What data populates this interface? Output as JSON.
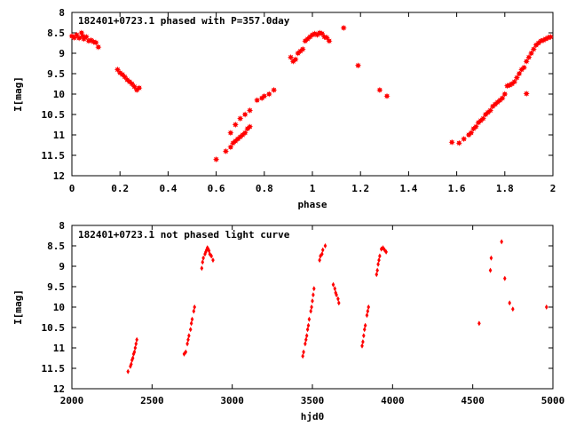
{
  "chart_data": [
    {
      "type": "scatter",
      "title": "182401+0723.1 phased with P=357.0day",
      "xlabel": "phase",
      "ylabel": "I[mag]",
      "xlim": [
        0,
        2
      ],
      "ylim": [
        8,
        12
      ],
      "y_inverted": true,
      "grid": false,
      "marker_color": "#ff0000",
      "marker": "star",
      "xticks": [
        "0",
        "0.2",
        "0.4",
        "0.6",
        "0.8",
        "1",
        "1.2",
        "1.4",
        "1.6",
        "1.8",
        "2"
      ],
      "yticks": [
        "8",
        "8.5",
        "9",
        "9.5",
        "10",
        "10.5",
        "11",
        "11.5",
        "12"
      ],
      "series": [
        {
          "points": [
            [
              0.0,
              8.58
            ],
            [
              0.01,
              8.62
            ],
            [
              0.02,
              8.55
            ],
            [
              0.03,
              8.63
            ],
            [
              0.04,
              8.5
            ],
            [
              0.045,
              8.58
            ],
            [
              0.05,
              8.65
            ],
            [
              0.06,
              8.6
            ],
            [
              0.07,
              8.7
            ],
            [
              0.08,
              8.68
            ],
            [
              0.09,
              8.72
            ],
            [
              0.1,
              8.74
            ],
            [
              0.11,
              8.85
            ],
            [
              0.19,
              9.4
            ],
            [
              0.2,
              9.48
            ],
            [
              0.21,
              9.52
            ],
            [
              0.22,
              9.58
            ],
            [
              0.23,
              9.65
            ],
            [
              0.24,
              9.7
            ],
            [
              0.25,
              9.75
            ],
            [
              0.26,
              9.82
            ],
            [
              0.27,
              9.9
            ],
            [
              0.28,
              9.85
            ],
            [
              0.6,
              11.6
            ],
            [
              0.64,
              11.4
            ],
            [
              0.66,
              11.3
            ],
            [
              0.67,
              11.2
            ],
            [
              0.68,
              11.15
            ],
            [
              0.69,
              11.1
            ],
            [
              0.7,
              11.05
            ],
            [
              0.71,
              11.0
            ],
            [
              0.72,
              10.95
            ],
            [
              0.73,
              10.85
            ],
            [
              0.74,
              10.8
            ],
            [
              0.66,
              10.95
            ],
            [
              0.68,
              10.75
            ],
            [
              0.7,
              10.6
            ],
            [
              0.72,
              10.5
            ],
            [
              0.74,
              10.4
            ],
            [
              0.77,
              10.15
            ],
            [
              0.79,
              10.1
            ],
            [
              0.8,
              10.05
            ],
            [
              0.82,
              10.0
            ],
            [
              0.84,
              9.9
            ],
            [
              0.91,
              9.1
            ],
            [
              0.92,
              9.2
            ],
            [
              0.93,
              9.15
            ],
            [
              0.94,
              9.0
            ],
            [
              0.95,
              8.95
            ],
            [
              0.96,
              8.9
            ],
            [
              0.97,
              8.7
            ],
            [
              0.98,
              8.65
            ],
            [
              0.99,
              8.6
            ],
            [
              1.0,
              8.55
            ],
            [
              1.01,
              8.52
            ],
            [
              1.02,
              8.55
            ],
            [
              1.03,
              8.5
            ],
            [
              1.04,
              8.52
            ],
            [
              1.05,
              8.6
            ],
            [
              1.06,
              8.62
            ],
            [
              1.07,
              8.7
            ],
            [
              1.13,
              8.38
            ],
            [
              1.19,
              9.3
            ],
            [
              1.28,
              9.9
            ],
            [
              1.31,
              10.05
            ],
            [
              1.58,
              11.18
            ],
            [
              1.61,
              11.2
            ],
            [
              1.63,
              11.1
            ],
            [
              1.65,
              11.0
            ],
            [
              1.66,
              10.95
            ],
            [
              1.67,
              10.85
            ],
            [
              1.68,
              10.8
            ],
            [
              1.69,
              10.7
            ],
            [
              1.7,
              10.65
            ],
            [
              1.71,
              10.6
            ],
            [
              1.72,
              10.5
            ],
            [
              1.73,
              10.45
            ],
            [
              1.74,
              10.4
            ],
            [
              1.75,
              10.3
            ],
            [
              1.76,
              10.25
            ],
            [
              1.77,
              10.2
            ],
            [
              1.78,
              10.15
            ],
            [
              1.79,
              10.1
            ],
            [
              1.8,
              10.0
            ],
            [
              1.81,
              9.8
            ],
            [
              1.82,
              9.78
            ],
            [
              1.83,
              9.75
            ],
            [
              1.84,
              9.7
            ],
            [
              1.85,
              9.6
            ],
            [
              1.86,
              9.5
            ],
            [
              1.87,
              9.4
            ],
            [
              1.88,
              9.35
            ],
            [
              1.89,
              9.2
            ],
            [
              1.9,
              9.1
            ],
            [
              1.91,
              9.0
            ],
            [
              1.92,
              8.9
            ],
            [
              1.93,
              8.8
            ],
            [
              1.94,
              8.75
            ],
            [
              1.95,
              8.7
            ],
            [
              1.96,
              8.68
            ],
            [
              1.97,
              8.65
            ],
            [
              1.98,
              8.62
            ],
            [
              1.99,
              8.6
            ],
            [
              1.89,
              9.99
            ]
          ]
        }
      ]
    },
    {
      "type": "scatter",
      "title": "182401+0723.1 not phased light curve",
      "xlabel": "hjd0",
      "ylabel": "I[mag]",
      "xlim": [
        2000,
        5000
      ],
      "ylim": [
        8,
        12
      ],
      "y_inverted": true,
      "grid": false,
      "marker_color": "#ff0000",
      "marker": "diamond",
      "xticks": [
        "2000",
        "2500",
        "3000",
        "3500",
        "4000",
        "4500",
        "5000"
      ],
      "yticks": [
        "8",
        "8.5",
        "9",
        "9.5",
        "10",
        "10.5",
        "11",
        "11.5",
        "12"
      ],
      "series": [
        {
          "points": [
            [
              2350,
              11.58
            ],
            [
              2365,
              11.45
            ],
            [
              2370,
              11.4
            ],
            [
              2375,
              11.3
            ],
            [
              2380,
              11.25
            ],
            [
              2385,
              11.15
            ],
            [
              2390,
              11.1
            ],
            [
              2395,
              11.0
            ],
            [
              2400,
              10.9
            ],
            [
              2405,
              10.8
            ],
            [
              2700,
              11.15
            ],
            [
              2710,
              11.1
            ],
            [
              2720,
              10.9
            ],
            [
              2725,
              10.8
            ],
            [
              2730,
              10.7
            ],
            [
              2740,
              10.55
            ],
            [
              2745,
              10.4
            ],
            [
              2750,
              10.3
            ],
            [
              2760,
              10.1
            ],
            [
              2765,
              10.0
            ],
            [
              2810,
              9.05
            ],
            [
              2815,
              8.9
            ],
            [
              2820,
              8.8
            ],
            [
              2830,
              8.7
            ],
            [
              2835,
              8.65
            ],
            [
              2840,
              8.6
            ],
            [
              2845,
              8.55
            ],
            [
              2850,
              8.58
            ],
            [
              2855,
              8.62
            ],
            [
              2860,
              8.7
            ],
            [
              2870,
              8.75
            ],
            [
              2880,
              8.85
            ],
            [
              3440,
              11.2
            ],
            [
              3445,
              11.1
            ],
            [
              3455,
              10.9
            ],
            [
              3460,
              10.8
            ],
            [
              3465,
              10.7
            ],
            [
              3470,
              10.55
            ],
            [
              3475,
              10.45
            ],
            [
              3480,
              10.3
            ],
            [
              3490,
              10.1
            ],
            [
              3495,
              10.0
            ],
            [
              3500,
              9.85
            ],
            [
              3505,
              9.7
            ],
            [
              3510,
              9.55
            ],
            [
              3545,
              8.85
            ],
            [
              3550,
              8.75
            ],
            [
              3560,
              8.7
            ],
            [
              3565,
              8.6
            ],
            [
              3580,
              8.5
            ],
            [
              3630,
              9.45
            ],
            [
              3640,
              9.55
            ],
            [
              3645,
              9.65
            ],
            [
              3650,
              9.7
            ],
            [
              3660,
              9.8
            ],
            [
              3665,
              9.9
            ],
            [
              3810,
              10.95
            ],
            [
              3815,
              10.85
            ],
            [
              3820,
              10.7
            ],
            [
              3825,
              10.55
            ],
            [
              3830,
              10.45
            ],
            [
              3840,
              10.2
            ],
            [
              3845,
              10.1
            ],
            [
              3850,
              10.0
            ],
            [
              3900,
              9.2
            ],
            [
              3905,
              9.1
            ],
            [
              3910,
              8.95
            ],
            [
              3915,
              8.85
            ],
            [
              3920,
              8.75
            ],
            [
              3930,
              8.58
            ],
            [
              3940,
              8.55
            ],
            [
              3950,
              8.6
            ],
            [
              3960,
              8.65
            ],
            [
              4540,
              10.4
            ],
            [
              4610,
              9.1
            ],
            [
              4615,
              8.8
            ],
            [
              4680,
              8.4
            ],
            [
              4700,
              9.3
            ],
            [
              4730,
              9.9
            ],
            [
              4750,
              10.05
            ],
            [
              4960,
              10.0
            ]
          ]
        }
      ]
    }
  ]
}
